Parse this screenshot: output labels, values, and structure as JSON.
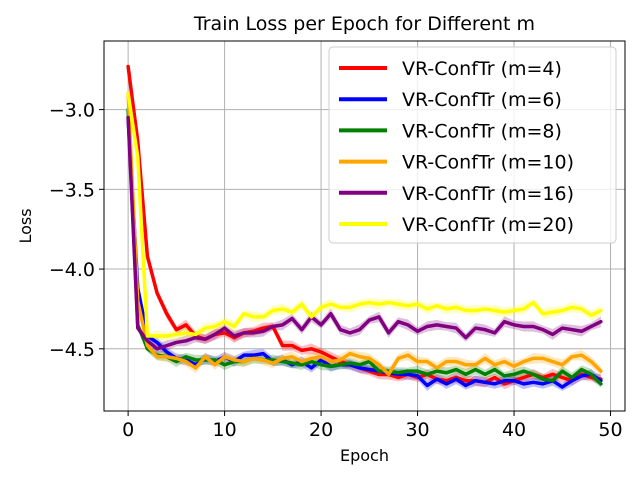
{
  "chart_data": {
    "type": "line",
    "title": "Train Loss per Epoch for Different m",
    "xlabel": "Epoch",
    "ylabel": "Loss",
    "xlim": [
      -2.5,
      51.5
    ],
    "ylim": [
      -4.89,
      -2.57
    ],
    "xticks": [
      0,
      10,
      20,
      30,
      40,
      50
    ],
    "xtick_labels": [
      "0",
      "10",
      "20",
      "30",
      "40",
      "50"
    ],
    "yticks": [
      -3.0,
      -3.5,
      -4.0,
      -4.5
    ],
    "ytick_labels": [
      "−3.0",
      "−3.5",
      "−4.0",
      "−4.5"
    ],
    "grid": true,
    "legend_position": "top-right",
    "series": [
      {
        "name": "VR-ConfTr (m=4)",
        "color": "#ff0000",
        "x": [
          0,
          1,
          2,
          3,
          4,
          5,
          6,
          7,
          8,
          9,
          10,
          11,
          12,
          13,
          14,
          15,
          16,
          17,
          18,
          19,
          20,
          21,
          22,
          23,
          24,
          25,
          26,
          27,
          28,
          29,
          30,
          31,
          32,
          33,
          34,
          35,
          36,
          37,
          38,
          39,
          40,
          41,
          42,
          43,
          44,
          45,
          46,
          47,
          48,
          49
        ],
        "values": [
          -2.73,
          -3.2,
          -3.92,
          -4.15,
          -4.28,
          -4.38,
          -4.35,
          -4.42,
          -4.44,
          -4.41,
          -4.4,
          -4.43,
          -4.4,
          -4.39,
          -4.37,
          -4.36,
          -4.48,
          -4.48,
          -4.51,
          -4.5,
          -4.52,
          -4.55,
          -4.58,
          -4.6,
          -4.62,
          -4.64,
          -4.66,
          -4.66,
          -4.68,
          -4.66,
          -4.68,
          -4.66,
          -4.69,
          -4.7,
          -4.68,
          -4.7,
          -4.7,
          -4.71,
          -4.68,
          -4.72,
          -4.7,
          -4.68,
          -4.66,
          -4.68,
          -4.66,
          -4.68,
          -4.7,
          -4.66,
          -4.68,
          -4.69
        ]
      },
      {
        "name": "VR-ConfTr (m=6)",
        "color": "#0000ff",
        "x": [
          0,
          1,
          2,
          3,
          4,
          5,
          6,
          7,
          8,
          9,
          10,
          11,
          12,
          13,
          14,
          15,
          16,
          17,
          18,
          19,
          20,
          21,
          22,
          23,
          24,
          25,
          26,
          27,
          28,
          29,
          30,
          31,
          32,
          33,
          34,
          35,
          36,
          37,
          38,
          39,
          40,
          41,
          42,
          43,
          44,
          45,
          46,
          47,
          48,
          49
        ],
        "values": [
          -3.05,
          -4.12,
          -4.42,
          -4.46,
          -4.52,
          -4.56,
          -4.57,
          -4.6,
          -4.56,
          -4.58,
          -4.55,
          -4.58,
          -4.54,
          -4.54,
          -4.53,
          -4.58,
          -4.57,
          -4.6,
          -4.58,
          -4.62,
          -4.57,
          -4.61,
          -4.6,
          -4.6,
          -4.62,
          -4.63,
          -4.64,
          -4.65,
          -4.66,
          -4.66,
          -4.67,
          -4.73,
          -4.69,
          -4.72,
          -4.69,
          -4.73,
          -4.7,
          -4.71,
          -4.72,
          -4.7,
          -4.7,
          -4.72,
          -4.71,
          -4.72,
          -4.7,
          -4.74,
          -4.7,
          -4.67,
          -4.66,
          -4.7
        ]
      },
      {
        "name": "VR-ConfTr (m=8)",
        "color": "#008000",
        "x": [
          0,
          1,
          2,
          3,
          4,
          5,
          6,
          7,
          8,
          9,
          10,
          11,
          12,
          13,
          14,
          15,
          16,
          17,
          18,
          19,
          20,
          21,
          22,
          23,
          24,
          25,
          26,
          27,
          28,
          29,
          30,
          31,
          32,
          33,
          34,
          35,
          36,
          37,
          38,
          39,
          40,
          41,
          42,
          43,
          44,
          45,
          46,
          47,
          48,
          49
        ],
        "values": [
          -3.0,
          -4.35,
          -4.5,
          -4.54,
          -4.55,
          -4.58,
          -4.55,
          -4.57,
          -4.57,
          -4.57,
          -4.6,
          -4.58,
          -4.58,
          -4.56,
          -4.57,
          -4.57,
          -4.58,
          -4.59,
          -4.6,
          -4.58,
          -4.6,
          -4.61,
          -4.6,
          -4.59,
          -4.6,
          -4.58,
          -4.64,
          -4.64,
          -4.65,
          -4.64,
          -4.64,
          -4.66,
          -4.64,
          -4.65,
          -4.63,
          -4.66,
          -4.63,
          -4.66,
          -4.63,
          -4.67,
          -4.66,
          -4.64,
          -4.66,
          -4.69,
          -4.7,
          -4.64,
          -4.68,
          -4.63,
          -4.66,
          -4.72
        ]
      },
      {
        "name": "VR-ConfTr (m=10)",
        "color": "#ffa500",
        "x": [
          0,
          1,
          2,
          3,
          4,
          5,
          6,
          7,
          8,
          9,
          10,
          11,
          12,
          13,
          14,
          15,
          16,
          17,
          18,
          19,
          20,
          21,
          22,
          23,
          24,
          25,
          26,
          27,
          28,
          29,
          30,
          31,
          32,
          33,
          34,
          35,
          36,
          37,
          38,
          39,
          40,
          41,
          42,
          43,
          44,
          45,
          46,
          47,
          48,
          49
        ],
        "values": [
          -2.9,
          -4.2,
          -4.48,
          -4.55,
          -4.55,
          -4.56,
          -4.58,
          -4.62,
          -4.55,
          -4.6,
          -4.55,
          -4.57,
          -4.58,
          -4.56,
          -4.57,
          -4.59,
          -4.56,
          -4.55,
          -4.58,
          -4.56,
          -4.55,
          -4.58,
          -4.57,
          -4.53,
          -4.55,
          -4.56,
          -4.6,
          -4.66,
          -4.56,
          -4.54,
          -4.58,
          -4.58,
          -4.62,
          -4.58,
          -4.58,
          -4.6,
          -4.6,
          -4.56,
          -4.6,
          -4.58,
          -4.61,
          -4.58,
          -4.56,
          -4.56,
          -4.58,
          -4.6,
          -4.55,
          -4.54,
          -4.58,
          -4.64
        ]
      },
      {
        "name": "VR-ConfTr (m=16)",
        "color": "#800080",
        "x": [
          0,
          1,
          2,
          3,
          4,
          5,
          6,
          7,
          8,
          9,
          10,
          11,
          12,
          13,
          14,
          15,
          16,
          17,
          18,
          19,
          20,
          21,
          22,
          23,
          24,
          25,
          26,
          27,
          28,
          29,
          30,
          31,
          32,
          33,
          34,
          35,
          36,
          37,
          38,
          39,
          40,
          41,
          42,
          43,
          44,
          45,
          46,
          47,
          48,
          49
        ],
        "values": [
          -3.05,
          -4.37,
          -4.45,
          -4.5,
          -4.48,
          -4.46,
          -4.45,
          -4.43,
          -4.44,
          -4.41,
          -4.37,
          -4.42,
          -4.4,
          -4.4,
          -4.39,
          -4.36,
          -4.35,
          -4.31,
          -4.38,
          -4.3,
          -4.35,
          -4.28,
          -4.38,
          -4.4,
          -4.38,
          -4.32,
          -4.3,
          -4.4,
          -4.33,
          -4.35,
          -4.39,
          -4.36,
          -4.35,
          -4.36,
          -4.37,
          -4.43,
          -4.37,
          -4.38,
          -4.4,
          -4.33,
          -4.35,
          -4.36,
          -4.36,
          -4.38,
          -4.41,
          -4.37,
          -4.38,
          -4.39,
          -4.36,
          -4.33
        ]
      },
      {
        "name": "VR-ConfTr (m=20)",
        "color": "#ffff00",
        "x": [
          0,
          1,
          2,
          3,
          4,
          5,
          6,
          7,
          8,
          9,
          10,
          11,
          12,
          13,
          14,
          15,
          16,
          17,
          18,
          19,
          20,
          21,
          22,
          23,
          24,
          25,
          26,
          27,
          28,
          29,
          30,
          31,
          32,
          33,
          34,
          35,
          36,
          37,
          38,
          39,
          40,
          41,
          42,
          43,
          44,
          45,
          46,
          47,
          48,
          49
        ],
        "values": [
          -2.9,
          -3.3,
          -4.42,
          -4.42,
          -4.42,
          -4.41,
          -4.4,
          -4.41,
          -4.37,
          -4.36,
          -4.33,
          -4.36,
          -4.28,
          -4.3,
          -4.3,
          -4.26,
          -4.25,
          -4.27,
          -4.22,
          -4.3,
          -4.24,
          -4.22,
          -4.24,
          -4.24,
          -4.22,
          -4.21,
          -4.22,
          -4.21,
          -4.22,
          -4.23,
          -4.22,
          -4.25,
          -4.23,
          -4.25,
          -4.24,
          -4.26,
          -4.26,
          -4.25,
          -4.26,
          -4.27,
          -4.26,
          -4.25,
          -4.21,
          -4.28,
          -4.27,
          -4.26,
          -4.24,
          -4.25,
          -4.29,
          -4.26
        ]
      }
    ]
  }
}
